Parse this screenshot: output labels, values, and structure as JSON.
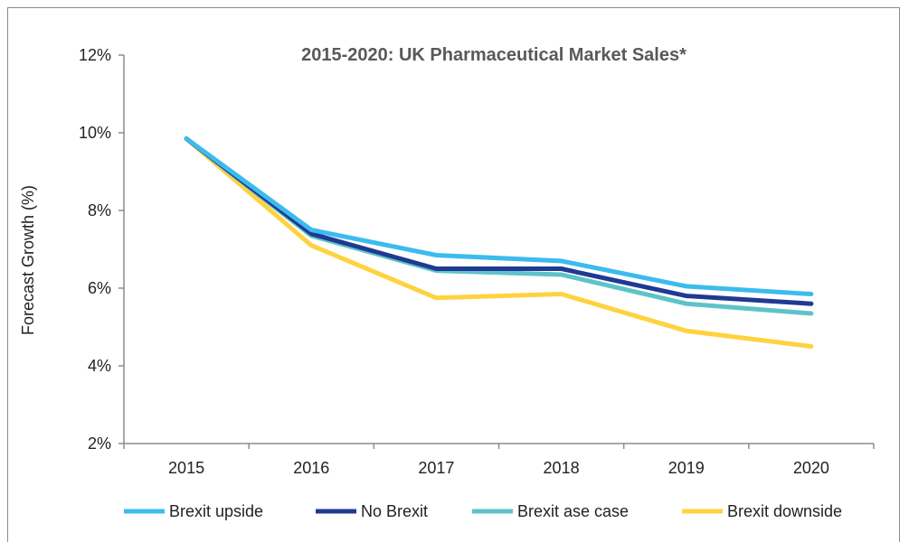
{
  "chart_data": {
    "type": "line",
    "title": "2015-2020: UK Pharmaceutical Market Sales*",
    "xlabel": "",
    "ylabel": "Forecast Growth (%)",
    "x": [
      "2015",
      "2016",
      "2017",
      "2018",
      "2019",
      "2020"
    ],
    "ylim": [
      2,
      12
    ],
    "yticks": [
      2,
      4,
      6,
      8,
      10,
      12
    ],
    "ytick_labels": [
      "2%",
      "4%",
      "6%",
      "8%",
      "10%",
      "12%"
    ],
    "grid": false,
    "legend_position": "bottom",
    "series": [
      {
        "name": "Brexit upside",
        "color": "#3dbbee",
        "values": [
          9.85,
          7.5,
          6.85,
          6.7,
          6.05,
          5.85
        ]
      },
      {
        "name": "No Brexit",
        "color": "#1f3a93",
        "values": [
          9.85,
          7.4,
          6.5,
          6.5,
          5.8,
          5.6
        ]
      },
      {
        "name": "Brexit ase case",
        "color": "#5ec3c8",
        "values": [
          9.85,
          7.35,
          6.45,
          6.35,
          5.6,
          5.35
        ]
      },
      {
        "name": "Brexit downside",
        "color": "#ffd23f",
        "values": [
          9.85,
          7.1,
          5.75,
          5.85,
          4.9,
          4.5
        ]
      }
    ]
  }
}
